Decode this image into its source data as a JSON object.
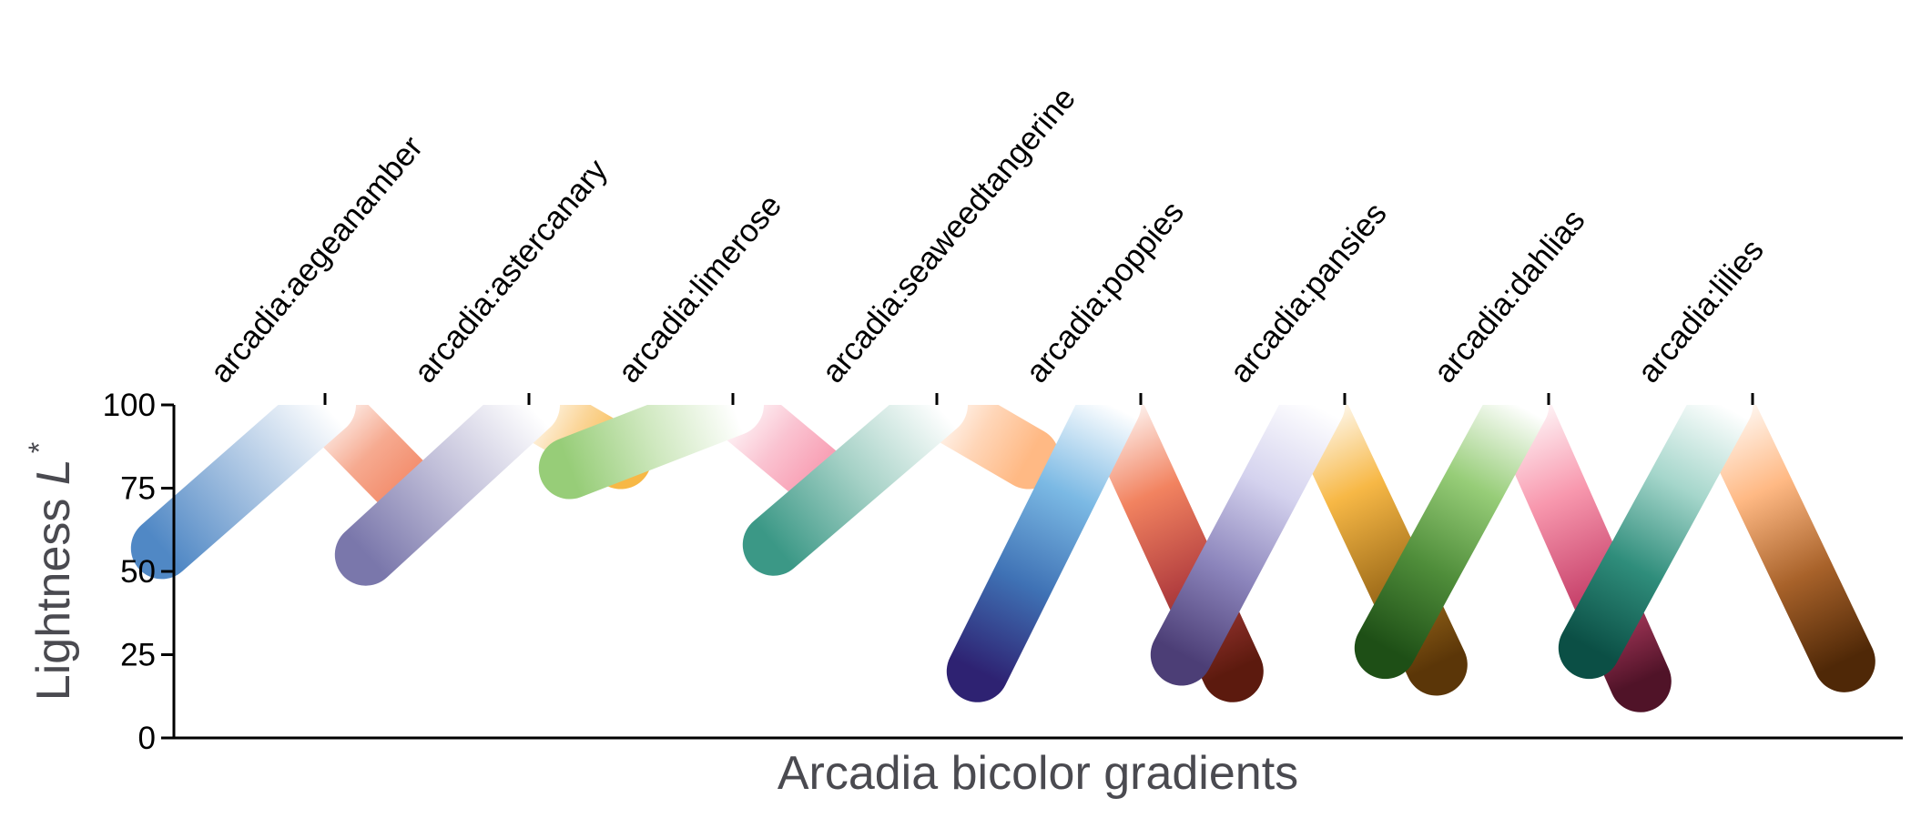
{
  "chart_data": {
    "type": "line",
    "xlabel": "Arcadia bicolor gradients",
    "ylabel_main": "Lightness ",
    "ylabel_var": "L",
    "ylabel_sup": "*",
    "ylim": [
      0,
      100
    ],
    "yticks": [
      0,
      25,
      50,
      75,
      100
    ],
    "grid": false,
    "legend": "none",
    "categories": [
      "arcadia:aegeanamber",
      "arcadia:astercanary",
      "arcadia:limerose",
      "arcadia:seaweedtangerine",
      "arcadia:poppies",
      "arcadia:pansies",
      "arcadia:dahlias",
      "arcadia:lilies"
    ],
    "series": [
      {
        "x_start": 0.2,
        "x_mid": 1.0,
        "x_end": 1.45,
        "l_start": 57,
        "l_mid": 100,
        "l_end": 72,
        "colors_start": [
          "#5088c5",
          "#a9c4e2",
          "#ffffff"
        ],
        "colors_end": [
          "#ffffff",
          "#f6aa90",
          "#f28360"
        ]
      },
      {
        "x_start": 1.2,
        "x_mid": 2.0,
        "x_end": 2.45,
        "l_start": 55,
        "l_mid": 100,
        "l_end": 84,
        "colors_start": [
          "#7a77ab",
          "#c1bfd9",
          "#ffffff"
        ],
        "colors_end": [
          "#ffffff",
          "#fbd69a",
          "#f7b846"
        ]
      },
      {
        "x_start": 2.2,
        "x_mid": 3.0,
        "x_end": 3.45,
        "l_start": 81,
        "l_mid": 100,
        "l_end": 77,
        "colors_start": [
          "#97cd78",
          "#cfe8bf",
          "#ffffff"
        ],
        "colors_end": [
          "#ffffff",
          "#fac3d1",
          "#f898ae"
        ]
      },
      {
        "x_start": 3.2,
        "x_mid": 4.0,
        "x_end": 4.45,
        "l_start": 58,
        "l_mid": 100,
        "l_end": 84,
        "colors_start": [
          "#3b9886",
          "#a5d1c6",
          "#ffffff"
        ],
        "colors_end": [
          "#ffffff",
          "#ffd6b8",
          "#ffb984"
        ]
      },
      {
        "x_start": 4.2,
        "x_mid": 4.85,
        "x_end": 5.45,
        "l_start": 20,
        "l_mid": 100,
        "l_end": 20,
        "colors_start": [
          "#2e2272",
          "#3f72b5",
          "#7bb9e4",
          "#ffffff"
        ],
        "colors_end": [
          "#ffffff",
          "#f28360",
          "#b44040",
          "#5c1a0e"
        ]
      },
      {
        "x_start": 5.2,
        "x_mid": 5.85,
        "x_end": 6.45,
        "l_start": 25,
        "l_mid": 100,
        "l_end": 22,
        "colors_start": [
          "#4c3e76",
          "#8b84bb",
          "#d4d2ee",
          "#ffffff"
        ],
        "colors_end": [
          "#ffffff",
          "#f7b846",
          "#a8741e",
          "#5b3608"
        ]
      },
      {
        "x_start": 6.2,
        "x_mid": 6.85,
        "x_end": 7.45,
        "l_start": 27,
        "l_mid": 100,
        "l_end": 17,
        "colors_start": [
          "#1e4f16",
          "#4f8d3a",
          "#97cd78",
          "#ffffff"
        ],
        "colors_end": [
          "#ffffff",
          "#f898ae",
          "#c9466e",
          "#501328"
        ]
      },
      {
        "x_start": 7.2,
        "x_mid": 7.85,
        "x_end": 8.45,
        "l_start": 27,
        "l_mid": 100,
        "l_end": 23,
        "colors_start": [
          "#0b4f45",
          "#2f8d7b",
          "#a5d6cb",
          "#ffffff"
        ],
        "colors_end": [
          "#ffffff",
          "#ffb984",
          "#a8622a",
          "#4f2807"
        ]
      }
    ]
  }
}
